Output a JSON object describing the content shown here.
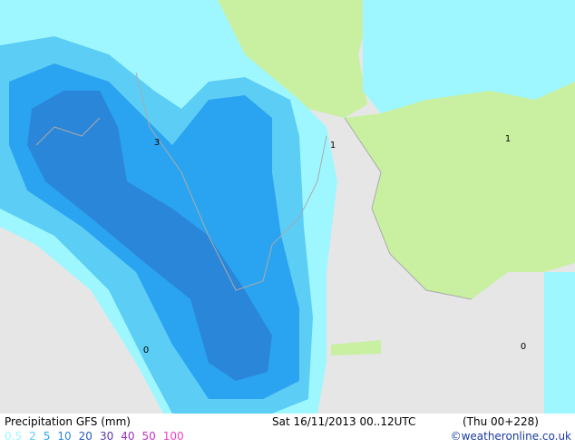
{
  "title": "Precipitation GFS (mm)",
  "valid_time": "Sat 16/11/2013 00..12UTC",
  "forecast_step": "(Thu 00+228)",
  "credit": "©weatheronline.co.uk",
  "legend": {
    "items": [
      {
        "value": 0.5,
        "color": "#9ef7ff"
      },
      {
        "value": 2,
        "color": "#5ccdf5"
      },
      {
        "value": 5,
        "color": "#2aa4f0"
      },
      {
        "value": 10,
        "color": "#2a86d8"
      },
      {
        "value": 20,
        "color": "#2a56c8"
      },
      {
        "value": 30,
        "color": "#5a36a8"
      },
      {
        "value": 40,
        "color": "#9a30c0"
      },
      {
        "value": 50,
        "color": "#c830c8"
      },
      {
        "value": 100,
        "color": "#f040c8"
      }
    ]
  },
  "map_labels": [
    {
      "text": "3"
    },
    {
      "text": "1"
    },
    {
      "text": "1"
    },
    {
      "text": "0"
    },
    {
      "text": "0"
    }
  ]
}
